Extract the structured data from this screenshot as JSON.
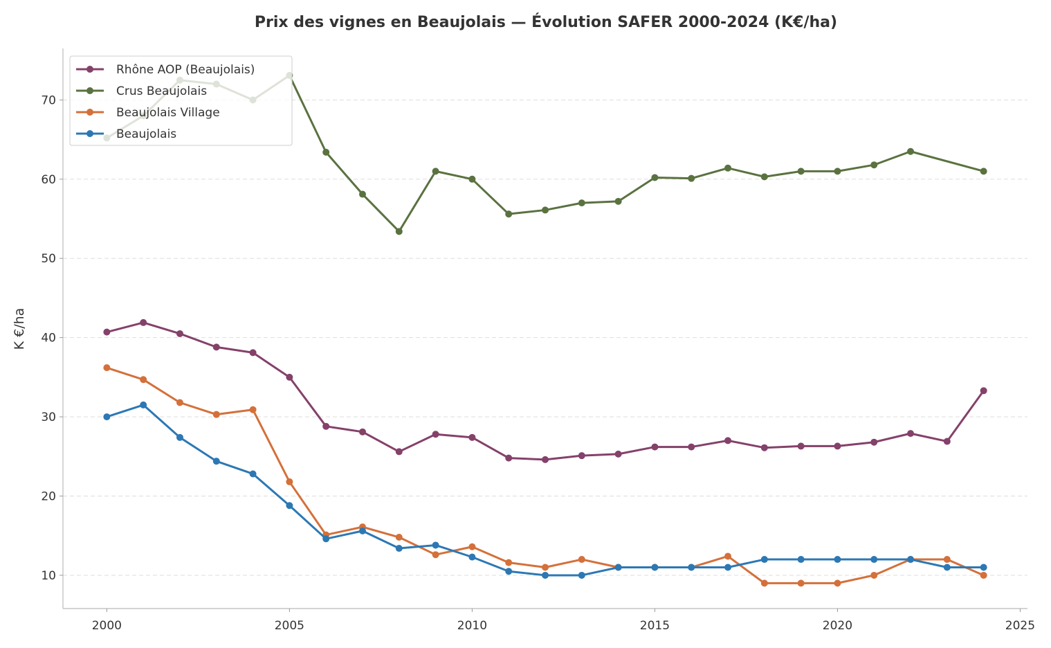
{
  "chart_data": {
    "type": "line",
    "title": "Prix des vignes en Beaujolais — Évolution SAFER 2000-2024 (K€/ha)",
    "xlabel": "",
    "ylabel": "K €/ha",
    "xlim": [
      1998.8,
      2025.2
    ],
    "ylim": [
      5.8,
      76.5
    ],
    "xticks": [
      2000,
      2005,
      2010,
      2015,
      2020,
      2025
    ],
    "yticks": [
      10,
      20,
      30,
      40,
      50,
      60,
      70
    ],
    "grid": "horizontal dashed",
    "legend": "top-left",
    "x": [
      2000,
      2001,
      2002,
      2003,
      2004,
      2005,
      2006,
      2007,
      2008,
      2009,
      2010,
      2011,
      2012,
      2013,
      2014,
      2015,
      2016,
      2017,
      2018,
      2019,
      2020,
      2021,
      2022,
      2023,
      2024
    ],
    "series": [
      {
        "name": "Rhône AOP (Beaujolais)",
        "color": "#84416a",
        "values": [
          40.7,
          41.9,
          40.5,
          38.8,
          38.1,
          35.0,
          28.8,
          28.1,
          25.6,
          27.8,
          27.4,
          24.8,
          24.6,
          25.1,
          25.3,
          26.2,
          26.2,
          27.0,
          26.1,
          26.3,
          26.3,
          26.8,
          27.9,
          26.9,
          33.3
        ]
      },
      {
        "name": "Crus Beaujolais",
        "color": "#5a7240",
        "values": [
          65.2,
          68.0,
          72.5,
          72.0,
          70.0,
          73.1,
          63.4,
          58.1,
          53.4,
          61.0,
          60.0,
          55.6,
          56.1,
          57.0,
          57.2,
          60.2,
          60.1,
          61.4,
          60.3,
          61.0,
          61.0,
          61.8,
          63.5,
          null,
          61.0
        ]
      },
      {
        "name": "Beaujolais Village",
        "color": "#d4703a",
        "values": [
          36.2,
          34.7,
          31.8,
          30.3,
          30.9,
          21.8,
          15.1,
          16.1,
          14.8,
          12.6,
          13.6,
          11.6,
          11.0,
          12.0,
          11.0,
          11.0,
          11.0,
          12.4,
          9.0,
          9.0,
          9.0,
          10.0,
          12.0,
          12.0,
          10.0
        ]
      },
      {
        "name": "Beaujolais",
        "color": "#2c78b4",
        "values": [
          30.0,
          31.5,
          27.4,
          24.4,
          22.8,
          18.8,
          14.6,
          15.6,
          13.4,
          13.8,
          12.3,
          10.5,
          10.0,
          10.0,
          11.0,
          11.0,
          11.0,
          11.0,
          12.0,
          12.0,
          12.0,
          12.0,
          12.0,
          11.0,
          11.0
        ]
      }
    ]
  }
}
